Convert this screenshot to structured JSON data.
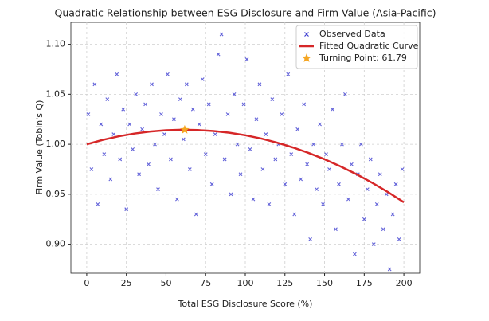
{
  "chart_data": {
    "type": "scatter",
    "title": "Quadratic Relationship between ESG Disclosure and Firm Value (Asia-Pacific)",
    "x_label": "Total ESG Disclosure Score (%)",
    "y_label": "Firm Value (Tobin's Q)",
    "xlim": [
      -10,
      210
    ],
    "ylim": [
      0.871,
      1.122
    ],
    "xticks": [
      0,
      25,
      50,
      75,
      100,
      125,
      150,
      175,
      200
    ],
    "yticks": [
      {
        "value": 0.9,
        "label": "0.90"
      },
      {
        "value": 0.95,
        "label": "0.95"
      },
      {
        "value": 1.0,
        "label": "1.00"
      },
      {
        "value": 1.05,
        "label": "1.05"
      },
      {
        "value": 1.1,
        "label": "1.10"
      }
    ],
    "grid": true,
    "legend": "upper right",
    "series": [
      {
        "name": "Observed Data",
        "type": "scatter",
        "color": "#3b3bd0",
        "x": [
          1,
          3,
          5,
          7,
          9,
          11,
          13,
          15,
          17,
          19,
          21,
          23,
          25,
          27,
          29,
          31,
          33,
          35,
          37,
          39,
          41,
          43,
          45,
          47,
          49,
          51,
          53,
          55,
          57,
          59,
          61,
          63,
          65,
          67,
          69,
          71,
          73,
          75,
          77,
          79,
          81,
          83,
          85,
          87,
          89,
          91,
          93,
          95,
          97,
          99,
          101,
          103,
          105,
          107,
          109,
          111,
          113,
          115,
          117,
          119,
          121,
          123,
          125,
          127,
          129,
          131,
          133,
          135,
          137,
          139,
          141,
          143,
          145,
          147,
          149,
          151,
          153,
          155,
          157,
          159,
          161,
          163,
          165,
          167,
          169,
          171,
          173,
          175,
          177,
          179,
          181,
          183,
          185,
          187,
          189,
          191,
          193,
          195,
          197,
          199
        ],
        "values": [
          1.03,
          0.975,
          1.06,
          0.94,
          1.02,
          0.99,
          1.045,
          0.965,
          1.01,
          1.07,
          0.985,
          1.035,
          0.935,
          1.02,
          0.995,
          1.05,
          0.97,
          1.015,
          1.04,
          0.98,
          1.06,
          1.0,
          0.955,
          1.03,
          1.01,
          1.07,
          0.985,
          1.025,
          0.945,
          1.045,
          1.005,
          1.06,
          0.975,
          1.035,
          0.93,
          1.02,
          1.065,
          0.99,
          1.04,
          0.96,
          1.01,
          1.09,
          1.11,
          0.985,
          1.03,
          0.95,
          1.05,
          1.0,
          0.97,
          1.04,
          1.085,
          0.995,
          0.945,
          1.025,
          1.06,
          0.975,
          1.01,
          0.94,
          1.045,
          0.985,
          1.0,
          1.03,
          0.96,
          1.07,
          0.99,
          0.93,
          1.015,
          0.965,
          1.04,
          0.98,
          0.905,
          1.0,
          0.955,
          1.02,
          0.94,
          0.99,
          0.975,
          1.035,
          0.915,
          0.96,
          1.0,
          1.05,
          0.945,
          0.98,
          0.89,
          0.97,
          1.0,
          0.925,
          0.955,
          0.985,
          0.9,
          0.94,
          0.97,
          0.915,
          0.95,
          0.875,
          0.93,
          0.96,
          0.905,
          0.975
        ]
      },
      {
        "name": "Fitted Quadratic Curve",
        "type": "line",
        "color": "#d62728",
        "x": [
          0,
          10,
          20,
          30,
          40,
          50,
          60,
          70,
          80,
          90,
          100,
          110,
          120,
          130,
          140,
          150,
          160,
          170,
          180,
          190,
          200
        ],
        "values": [
          1.0,
          1.0043,
          1.0079,
          1.0107,
          1.0127,
          1.014,
          1.0145,
          1.0142,
          1.0132,
          1.0115,
          1.009,
          1.0057,
          1.0016,
          0.9968,
          0.9913,
          0.985,
          0.9779,
          0.9701,
          0.9615,
          0.9521,
          0.942
        ]
      }
    ],
    "turning_point": {
      "name": "Turning Point: 61.79",
      "x": 61.79,
      "y": 1.0145,
      "color": "#f5a623"
    }
  }
}
